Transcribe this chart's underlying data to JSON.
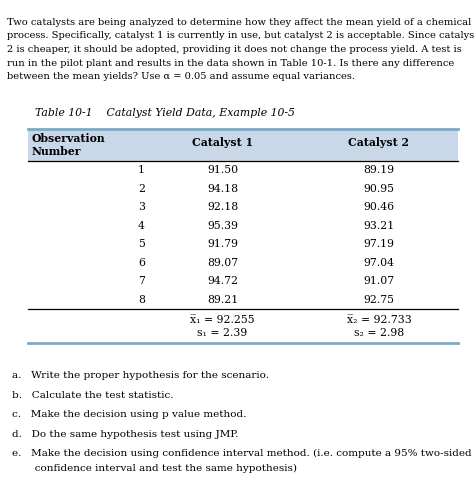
{
  "intro_lines": [
    "Two catalysts are being analyzed to determine how they affect the mean yield of a chemical",
    "process. Specifically, catalyst 1 is currently in use, but catalyst 2 is acceptable. Since catalyst",
    "2 is cheaper, it should be adopted, providing it does not change the process yield. A test is",
    "run in the pilot plant and results in the data shown in Table 10-1. Is there any difference",
    "between the mean yields? Use α = 0.05 and assume equal variances."
  ],
  "table_title": "Table 10-1    Catalyst Yield Data, Example 10-5",
  "observations": [
    1,
    2,
    3,
    4,
    5,
    6,
    7,
    8
  ],
  "catalyst1": [
    91.5,
    94.18,
    92.18,
    95.39,
    91.79,
    89.07,
    94.72,
    89.21
  ],
  "catalyst2": [
    89.19,
    90.95,
    90.46,
    93.21,
    97.19,
    97.04,
    91.07,
    92.75
  ],
  "mean1_label": "x̅₁ = 92.255",
  "std1_label": "s₁ = 2.39",
  "mean2_label": "x̅₂ = 92.733",
  "std2_label": "s₂ = 2.98",
  "questions": [
    "a.   Write the proper hypothesis for the scenario.",
    "b.   Calculate the test statistic.",
    "c.   Make the decision using p value method.",
    "d.   Do the same hypothesis test using JMP.",
    "e.   Make the decision using confidence interval method. (i.e. compute a 95% two-sided\n       confidence interval and test the same hypothesis)"
  ],
  "header_bg": "#c8d8e8",
  "table_border_color": "#7aaac8",
  "bg_color": "#ffffff",
  "fig_width": 4.74,
  "fig_height": 4.99,
  "dpi": 100
}
